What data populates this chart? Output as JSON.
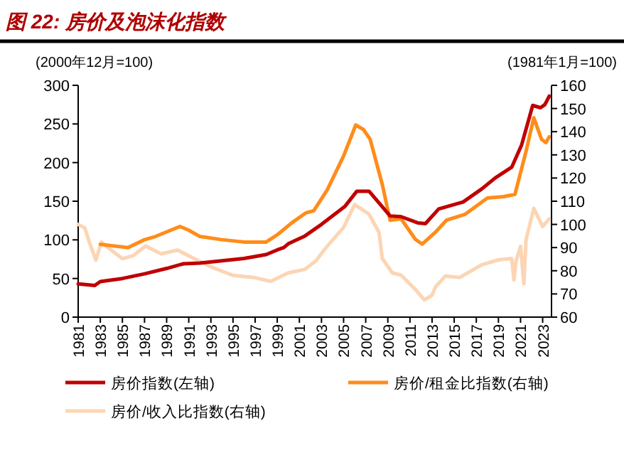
{
  "chart_data": {
    "type": "line",
    "title": "图 22: 房价及泡沫化指数",
    "ylabel": "(2000年12月=100)",
    "y2label": "(1981年1月=100)",
    "xlim": [
      1981,
      2023.8
    ],
    "xticks": [
      1981,
      1983,
      1985,
      1987,
      1989,
      1991,
      1993,
      1995,
      1997,
      1999,
      2001,
      2003,
      2005,
      2007,
      2009,
      2011,
      2013,
      2015,
      2017,
      2019,
      2021,
      2023
    ],
    "ylim": [
      0,
      300
    ],
    "yticks": [
      0,
      50,
      100,
      150,
      200,
      250,
      300
    ],
    "y2lim": [
      60,
      160
    ],
    "y2ticks": [
      60,
      70,
      80,
      90,
      100,
      110,
      120,
      130,
      140,
      150,
      160
    ],
    "grid": false,
    "legend": "bottom",
    "line_style": "solid",
    "marker": "none",
    "series": [
      {
        "name": "房价指数(左轴)",
        "color": "#c00000",
        "x": [
          1981,
          1982.5,
          1983,
          1985,
          1987,
          1989,
          1990.5,
          1992,
          1994,
          1996,
          1998,
          1999,
          1999.6,
          2000,
          2001.5,
          2003,
          2005.1,
          2006.2,
          2007.3,
          2009.2,
          2010.2,
          2011.7,
          2012.4,
          2013.6,
          2015.8,
          2017.5,
          2018.7,
          2020.2,
          2021.1,
          2022.1,
          2022.8,
          2023.2,
          2023.6
        ],
        "values": [
          43,
          41,
          46,
          50,
          56,
          63,
          69,
          70,
          73,
          76,
          81,
          87,
          90,
          95,
          105,
          120,
          143,
          163,
          163,
          131,
          130,
          122,
          121,
          140,
          149,
          166,
          180,
          194,
          223,
          274,
          271,
          275,
          286
        ]
      },
      {
        "name": "房价/租金比指数(右轴)",
        "color": "#ff8c1a",
        "axis": "y2",
        "x": [
          1983,
          1985.5,
          1987,
          1988,
          1990.2,
          1991,
          1992,
          1994,
          1996,
          1998,
          1999,
          2000.3,
          2001.6,
          2002.3,
          2003.5,
          2005,
          2006.1,
          2006.8,
          2007.4,
          2008.5,
          2009.2,
          2010.2,
          2011.5,
          2012.1,
          2013.3,
          2014.3,
          2016,
          2018,
          2019.5,
          2020.5,
          2021.5,
          2022.2,
          2022.9,
          2023.3,
          2023.6
        ],
        "values": [
          91.4,
          90,
          93.4,
          94.8,
          99.1,
          97.5,
          94.8,
          93.4,
          92.4,
          92.4,
          95.5,
          100.6,
          105,
          105.9,
          114.7,
          129.5,
          142.9,
          140.9,
          136.7,
          117.2,
          101.8,
          102.4,
          93.5,
          91.5,
          96.6,
          101.8,
          104.4,
          111.4,
          112,
          113,
          131.6,
          146,
          136.7,
          135.3,
          137.8
        ]
      },
      {
        "name": "房价/收入比指数(右轴)",
        "color": "#fcd5b4",
        "axis": "y2",
        "x": [
          1981,
          1981.6,
          1982,
          1982.6,
          1983.1,
          1983.6,
          1985,
          1986,
          1987.1,
          1988.5,
          1990,
          1991.5,
          1993,
          1995,
          1997,
          1998.4,
          2000,
          2001.5,
          2002.5,
          2003.5,
          2005,
          2006,
          2007.3,
          2008.2,
          2008.5,
          2009.4,
          2010.2,
          2011.5,
          2012.3,
          2013,
          2013.3,
          2014.2,
          2015.5,
          2017.5,
          2019,
          2020.2,
          2020.4,
          2020.6,
          2021,
          2021.3,
          2021.5,
          2022.2,
          2023,
          2023.6
        ],
        "values": [
          100,
          98.5,
          92.4,
          84.6,
          92.4,
          90.3,
          85.2,
          86.6,
          90.7,
          87.3,
          88.9,
          85.2,
          81.7,
          78,
          77,
          75.4,
          79.1,
          80.6,
          84.3,
          90.5,
          98.7,
          108.6,
          104.4,
          96.6,
          85.3,
          79.1,
          78.1,
          71.9,
          67.4,
          69.5,
          73,
          77.7,
          77.1,
          82.6,
          84.7,
          85.3,
          76,
          84.3,
          90.5,
          74.4,
          93.5,
          106.9,
          99.1,
          102.4
        ]
      }
    ]
  }
}
